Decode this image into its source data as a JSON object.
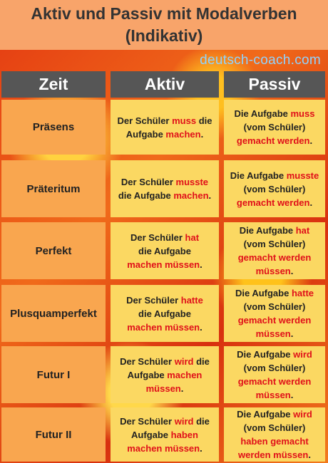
{
  "header": {
    "title_line1": "Aktiv und Passiv mit Modalverben",
    "title_line2": "(Indikativ)"
  },
  "watermark": "deutsch-coach.com",
  "columns": {
    "zeit": "Zeit",
    "aktiv": "Aktiv",
    "passiv": "Passiv"
  },
  "colors": {
    "header_bg": "#f8a46a",
    "column_header_bg": "#565656",
    "zeit_cell_bg": "#f9a64f",
    "cell_bg": "#fbd862",
    "highlight": "#e0101a"
  },
  "rows": [
    {
      "zeit": "Präsens",
      "aktiv": [
        "Der Schüler ",
        "muss",
        " die",
        "Aufgabe ",
        "machen",
        "."
      ],
      "passiv": [
        "Die Aufgabe ",
        "muss",
        "(vom Schüler)",
        "gemacht werden",
        "."
      ]
    },
    {
      "zeit": "Präteritum",
      "aktiv": [
        "Der Schüler ",
        "musste",
        "die Aufgabe ",
        "machen",
        "."
      ],
      "passiv": [
        "Die Aufgabe ",
        "musste",
        "(vom Schüler)",
        "gemacht werden",
        "."
      ]
    },
    {
      "zeit": "Perfekt",
      "aktiv": [
        "Der Schüler ",
        "hat",
        "die Aufgabe",
        "machen müssen",
        "."
      ],
      "passiv": [
        "Die Aufgabe ",
        "hat",
        "(vom Schüler)",
        "gemacht werden",
        "müssen",
        "."
      ]
    },
    {
      "zeit": "Plusquamperfekt",
      "aktiv": [
        "Der Schüler ",
        "hatte",
        "die Aufgabe",
        "machen müssen",
        "."
      ],
      "passiv": [
        "Die Aufgabe ",
        "hatte",
        "(vom Schüler)",
        "gemacht werden",
        "müssen",
        "."
      ]
    },
    {
      "zeit": "Futur I",
      "aktiv": [
        "Der Schüler ",
        "wird",
        " die",
        "Aufgabe ",
        "machen",
        "müssen",
        "."
      ],
      "passiv": [
        "Die Aufgabe ",
        "wird",
        "(vom Schüler)",
        "gemacht werden",
        "müssen",
        "."
      ]
    },
    {
      "zeit": "Futur II",
      "aktiv": [
        "Der Schüler ",
        "wird",
        " die",
        "Aufgabe ",
        "haben",
        "machen müssen",
        "."
      ],
      "passiv": [
        "Die Aufgabe ",
        "wird",
        "(vom  Schüler)",
        "haben gemacht",
        "werden müssen",
        "."
      ]
    }
  ]
}
